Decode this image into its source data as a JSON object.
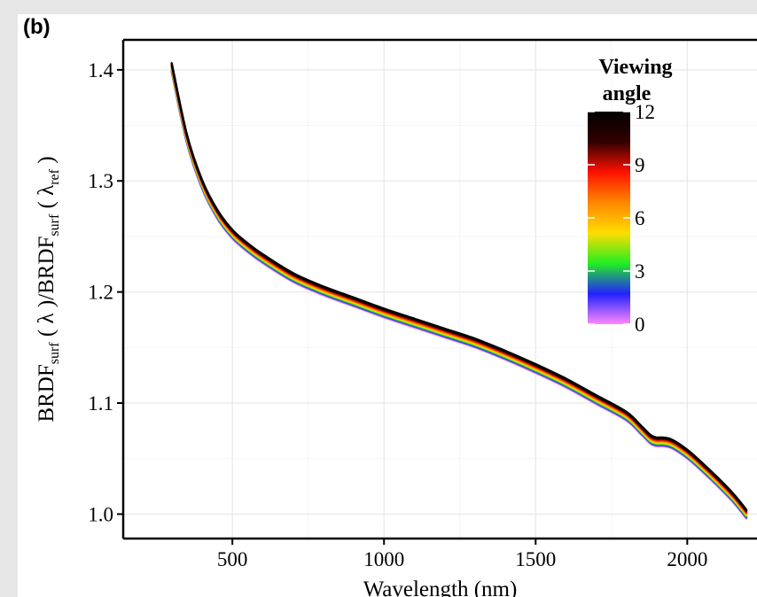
{
  "panel_label": "(b)",
  "chart_data": {
    "type": "line",
    "xlabel": "Wavelength (nm)",
    "ylabel": {
      "parts": [
        "BRDF",
        "surf",
        " ( λ )/BRDF",
        "surf",
        " ( λ",
        "ref",
        " )"
      ]
    },
    "xlim": [
      140,
      2230
    ],
    "ylim": [
      0.978,
      1.427
    ],
    "xticks": [
      500,
      1000,
      1500,
      2000
    ],
    "yticks": [
      1.0,
      1.1,
      1.2,
      1.3,
      1.4
    ],
    "ytick_labels": [
      "1.0",
      "1.1",
      "1.2",
      "1.3",
      "1.4"
    ],
    "grid": true,
    "legend": {
      "title_line1": "Viewing",
      "title_line2": "angle",
      "placement": "top-right inside",
      "ticks": [
        "0",
        "3",
        "6",
        "9",
        "12"
      ],
      "range": [
        0,
        12
      ],
      "colors": [
        "#ff88ff",
        "#2222ff",
        "#22ee22",
        "#ffdd00",
        "#ff8800",
        "#ff1100",
        "#330000",
        "#000000"
      ]
    },
    "x": [
      300,
      350,
      400,
      450,
      500,
      550,
      600,
      700,
      800,
      900,
      1000,
      1100,
      1200,
      1300,
      1400,
      1500,
      1600,
      1700,
      1800,
      1850,
      1880,
      1900,
      1920,
      1950,
      2000,
      2050,
      2100,
      2150,
      2195
    ],
    "series_values": [
      1.402,
      1.338,
      1.297,
      1.27,
      1.252,
      1.24,
      1.23,
      1.213,
      1.201,
      1.191,
      1.181,
      1.172,
      1.163,
      1.154,
      1.143,
      1.131,
      1.118,
      1.103,
      1.088,
      1.075,
      1.067,
      1.065,
      1.065,
      1.063,
      1.054,
      1.042,
      1.029,
      1.015,
      1.0
    ],
    "viewing_angles": [
      0,
      1,
      2,
      3,
      4,
      5,
      6,
      7,
      8,
      9,
      10,
      11,
      12
    ],
    "series_offsets": [
      -0.004,
      -0.0033,
      -0.0027,
      -0.002,
      -0.0013,
      -0.0007,
      0.0,
      0.0007,
      0.0013,
      0.002,
      0.0027,
      0.0033,
      0.004
    ]
  }
}
